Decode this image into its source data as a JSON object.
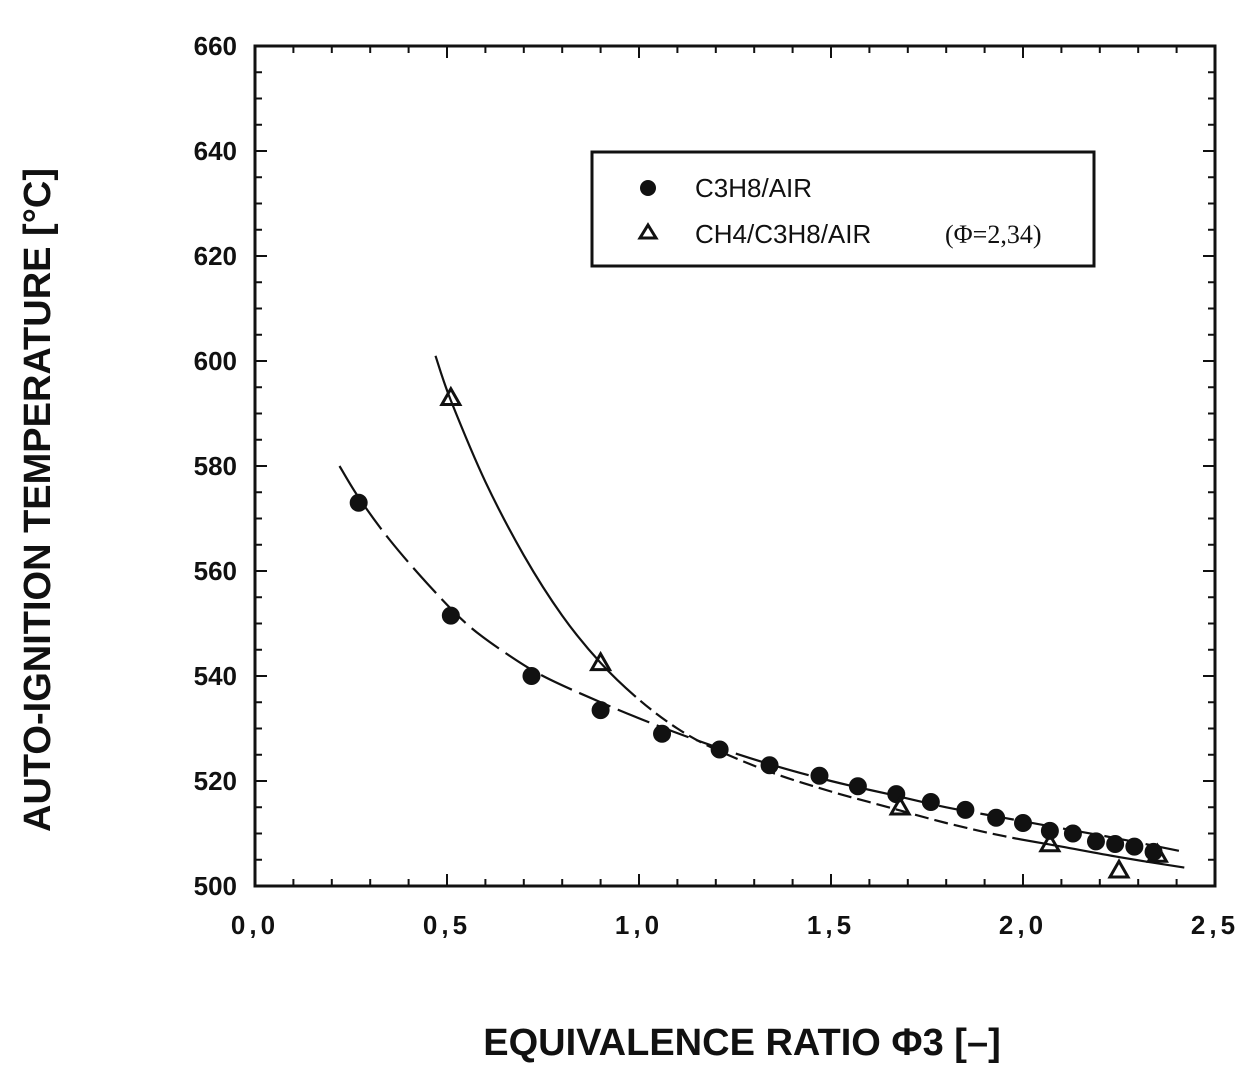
{
  "chart_data": {
    "type": "scatter",
    "xlabel": "EQUIVALENCE  RATIO  Φ3 [–]",
    "ylabel": "AUTO-IGNITION  TEMPERATURE  [°C]",
    "xlim": [
      0.0,
      2.5
    ],
    "ylim": [
      500,
      660
    ],
    "x_ticks": [
      "0,0",
      "0,5",
      "1,0",
      "1,5",
      "2,0",
      "2,5"
    ],
    "y_ticks": [
      "500",
      "520",
      "540",
      "560",
      "580",
      "600",
      "620",
      "640",
      "660"
    ],
    "legend_position": "top-right",
    "legend_note": "(Φ=2,34)",
    "series": [
      {
        "name": "C3H8/AIR",
        "marker": "filled-circle",
        "color": "#111111",
        "x": [
          0.27,
          0.51,
          0.72,
          0.9,
          1.06,
          1.21,
          1.34,
          1.47,
          1.57,
          1.67,
          1.76,
          1.85,
          1.93,
          2.0,
          2.07,
          2.13,
          2.19,
          2.24,
          2.29,
          2.34
        ],
        "y": [
          573,
          551.5,
          540,
          533.5,
          529,
          526,
          523,
          521,
          519,
          517.5,
          516,
          514.5,
          513,
          512,
          510.5,
          510,
          508.5,
          508,
          507.5,
          506.5
        ]
      },
      {
        "name": "CH4/C3H8/AIR",
        "marker": "open-triangle",
        "color": "#111111",
        "x": [
          0.51,
          0.9,
          1.68,
          2.07,
          2.25,
          2.35
        ],
        "y": [
          593,
          542.5,
          515,
          508,
          503,
          506
        ]
      }
    ],
    "fit_curves": [
      {
        "for_series": "C3H8/AIR",
        "style": "long-dash",
        "x": [
          0.22,
          0.27,
          0.35,
          0.45,
          0.55,
          0.65,
          0.75,
          0.9,
          1.05,
          1.2,
          1.35,
          1.5,
          1.65,
          1.8,
          1.95,
          2.1,
          2.25,
          2.42
        ],
        "y": [
          580,
          574,
          566,
          557.5,
          550,
          544.5,
          540,
          535,
          530.5,
          526.5,
          523,
          520,
          517.5,
          515,
          513,
          511,
          509,
          506.5
        ]
      },
      {
        "for_series": "CH4/C3H8/AIR",
        "style": "solid-then-short-dash",
        "x": [
          0.47,
          0.51,
          0.6,
          0.7,
          0.8,
          0.9,
          1.0,
          1.1,
          1.2,
          1.35,
          1.5,
          1.65,
          1.8,
          1.95,
          2.1,
          2.25,
          2.42
        ],
        "y": [
          601,
          592.5,
          577,
          563,
          551.5,
          542.5,
          535.5,
          530,
          526,
          521.5,
          518,
          515,
          512,
          509.5,
          507.5,
          505.5,
          503.5
        ]
      }
    ]
  }
}
